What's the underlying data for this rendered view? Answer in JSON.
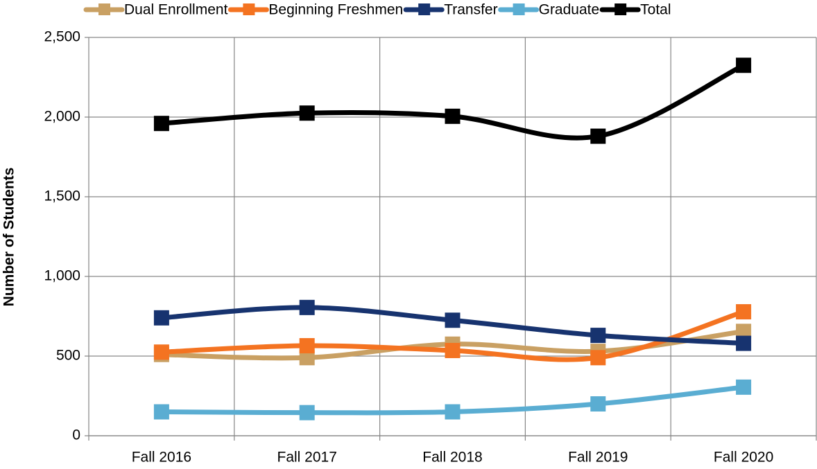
{
  "chart_data": {
    "type": "line",
    "y_label": "Number of Students",
    "categories": [
      "Fall 2016",
      "Fall 2017",
      "Fall 2018",
      "Fall 2019",
      "Fall 2020"
    ],
    "series": [
      {
        "name": "Dual Enrollment",
        "color": "#c9a063",
        "values": [
          510,
          490,
          575,
          530,
          655
        ]
      },
      {
        "name": "Beginning Freshmen",
        "color": "#f47321",
        "values": [
          525,
          565,
          535,
          490,
          778
        ]
      },
      {
        "name": "Transfer",
        "color": "#17336f",
        "values": [
          740,
          805,
          725,
          630,
          580
        ]
      },
      {
        "name": "Graduate",
        "color": "#5aadd2",
        "values": [
          150,
          145,
          150,
          200,
          305
        ]
      },
      {
        "name": "Total",
        "color": "#000000",
        "values": [
          1960,
          2025,
          2005,
          1880,
          2325
        ]
      }
    ],
    "ylim": [
      0,
      2500
    ],
    "yticks": [
      0,
      500,
      {
        "value": 1000,
        "label": "1,000"
      },
      {
        "value": 1500,
        "label": "1,500"
      },
      {
        "value": 2000,
        "label": "2,000"
      },
      {
        "value": 2500,
        "label": "2,500"
      }
    ],
    "grid": true,
    "legend": "top"
  }
}
